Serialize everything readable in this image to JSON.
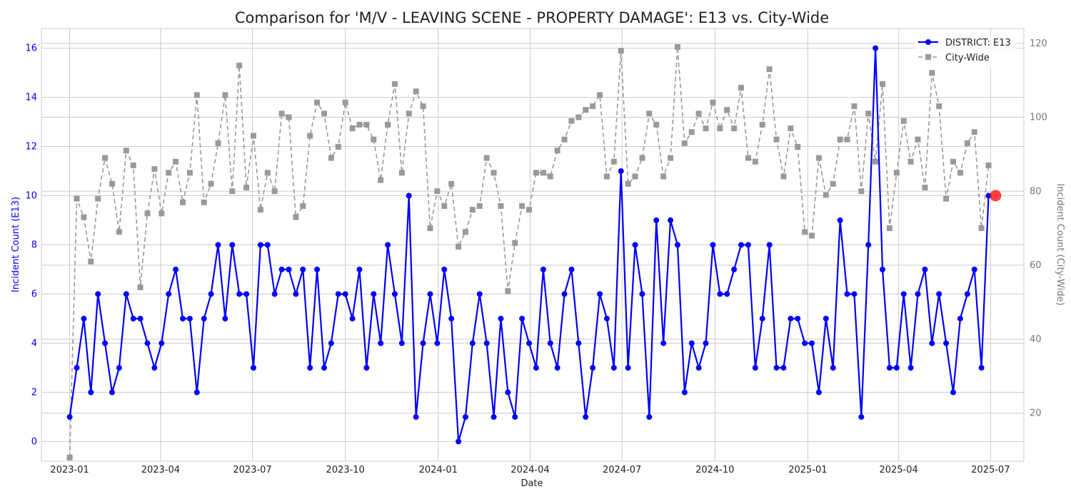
{
  "chart_data": {
    "type": "line",
    "title": "Comparison for 'M/V - LEAVING SCENE - PROPERTY DAMAGE': E13 vs. City-Wide",
    "xlabel": "Date",
    "ylabel_left": "Incident Count (E13)",
    "ylabel_right": "Incident Count (City-Wide)",
    "x_start": "2023-01-01",
    "x_end": "2025-07-06",
    "xlim": [
      "2022-12-04",
      "2025-08-03"
    ],
    "x_ticks": [
      {
        "date": "2023-01-01",
        "label": "2023-01"
      },
      {
        "date": "2023-04-01",
        "label": "2023-04"
      },
      {
        "date": "2023-07-01",
        "label": "2023-07"
      },
      {
        "date": "2023-10-01",
        "label": "2023-10"
      },
      {
        "date": "2024-01-01",
        "label": "2024-01"
      },
      {
        "date": "2024-04-01",
        "label": "2024-04"
      },
      {
        "date": "2024-07-01",
        "label": "2024-07"
      },
      {
        "date": "2024-10-01",
        "label": "2024-10"
      },
      {
        "date": "2025-01-01",
        "label": "2025-01"
      },
      {
        "date": "2025-04-01",
        "label": "2025-04"
      },
      {
        "date": "2025-07-01",
        "label": "2025-07"
      }
    ],
    "ylim_left": [
      -0.8,
      16.8
    ],
    "yticks_left": [
      0,
      2,
      4,
      6,
      8,
      10,
      12,
      14,
      16
    ],
    "ylim_right": [
      7,
      124
    ],
    "yticks_right": [
      20,
      40,
      60,
      80,
      100,
      120
    ],
    "grid": true,
    "legend_position": "top-right",
    "series": [
      {
        "name": "DISTRICT: E13",
        "axis": "left",
        "color": "#0000ff",
        "style": "solid",
        "marker": "circle",
        "values": [
          1,
          3,
          5,
          2,
          6,
          4,
          2,
          3,
          6,
          5,
          5,
          4,
          3,
          4,
          6,
          7,
          5,
          5,
          2,
          5,
          6,
          8,
          5,
          8,
          6,
          6,
          3,
          8,
          8,
          6,
          7,
          7,
          6,
          7,
          3,
          7,
          3,
          4,
          6,
          6,
          5,
          7,
          3,
          6,
          4,
          8,
          6,
          4,
          10,
          1,
          4,
          6,
          4,
          7,
          5,
          0,
          1,
          4,
          6,
          4,
          1,
          5,
          2,
          1,
          5,
          4,
          3,
          7,
          4,
          3,
          6,
          7,
          4,
          1,
          3,
          6,
          5,
          3,
          11,
          3,
          8,
          6,
          1,
          9,
          4,
          9,
          8,
          2,
          4,
          3,
          4,
          8,
          6,
          6,
          7,
          8,
          8,
          3,
          5,
          8,
          3,
          3,
          5,
          5,
          4,
          4,
          2,
          5,
          3,
          9,
          6,
          6,
          1,
          8,
          16,
          7,
          3,
          3,
          6,
          3,
          6,
          7,
          4,
          6,
          4,
          2,
          5,
          6,
          7,
          3,
          10
        ]
      },
      {
        "name": "City-Wide",
        "axis": "right",
        "color": "#999999",
        "style": "dashed",
        "marker": "square",
        "values": [
          8,
          78,
          73,
          61,
          78,
          89,
          82,
          69,
          91,
          87,
          54,
          74,
          86,
          74,
          85,
          88,
          77,
          85,
          106,
          77,
          82,
          93,
          106,
          80,
          114,
          81,
          95,
          75,
          85,
          80,
          101,
          100,
          73,
          76,
          95,
          104,
          101,
          89,
          92,
          104,
          97,
          98,
          98,
          94,
          83,
          98,
          109,
          85,
          101,
          107,
          103,
          70,
          80,
          76,
          82,
          65,
          69,
          75,
          76,
          89,
          85,
          76,
          53,
          66,
          76,
          75,
          85,
          85,
          84,
          91,
          94,
          99,
          100,
          102,
          103,
          106,
          84,
          88,
          118,
          82,
          84,
          89,
          101,
          98,
          84,
          89,
          119,
          93,
          96,
          101,
          97,
          104,
          97,
          102,
          97,
          108,
          89,
          88,
          98,
          113,
          94,
          84,
          97,
          92,
          69,
          68,
          89,
          79,
          82,
          94,
          94,
          103,
          80,
          101,
          88,
          109,
          70,
          85,
          99,
          88,
          94,
          81,
          112,
          103,
          78,
          88,
          85,
          93,
          96,
          70,
          87
        ]
      }
    ],
    "highlight": {
      "series": "DISTRICT: E13",
      "date": "2025-07-06",
      "value": 10,
      "color": "#ff0000"
    }
  }
}
